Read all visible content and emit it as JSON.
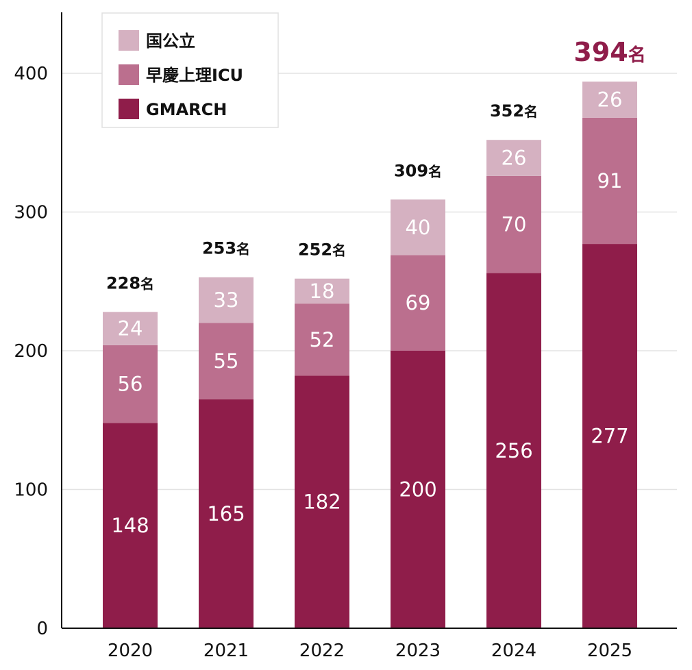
{
  "chart_data": {
    "type": "bar",
    "stacked": true,
    "categories": [
      "2020",
      "2021",
      "2022",
      "2023",
      "2024",
      "2025"
    ],
    "series": [
      {
        "name": "GMARCH",
        "values": [
          148,
          165,
          182,
          200,
          256,
          277
        ],
        "color": "#8f1d4a"
      },
      {
        "name": "早慶上理ICU",
        "values": [
          56,
          55,
          52,
          69,
          70,
          91
        ],
        "color": "#bb6f8e"
      },
      {
        "name": "国公立",
        "values": [
          24,
          33,
          18,
          40,
          26,
          26
        ],
        "color": "#d5b1c1"
      }
    ],
    "segment_labels": [
      [
        "148",
        "165",
        "182",
        "200",
        "256",
        "277"
      ],
      [
        "56",
        "55",
        "52",
        "69",
        "70",
        "91"
      ],
      [
        "24",
        "33",
        "18",
        "40",
        "26",
        "26"
      ]
    ],
    "totals": [
      {
        "value": "228",
        "unit": "名"
      },
      {
        "value": "253",
        "unit": "名"
      },
      {
        "value": "252",
        "unit": "名"
      },
      {
        "value": "309",
        "unit": "名"
      },
      {
        "value": "352",
        "unit": "名"
      },
      {
        "value": "394",
        "unit": "名"
      }
    ],
    "highlight_total_color": "#8f1d4a",
    "y_ticks": [
      "0",
      "100",
      "200",
      "300",
      "400"
    ],
    "ylim": [
      0,
      440
    ],
    "grid": "horizontal",
    "legend_position": "top-left",
    "title": "",
    "xlabel": "",
    "ylabel": ""
  }
}
